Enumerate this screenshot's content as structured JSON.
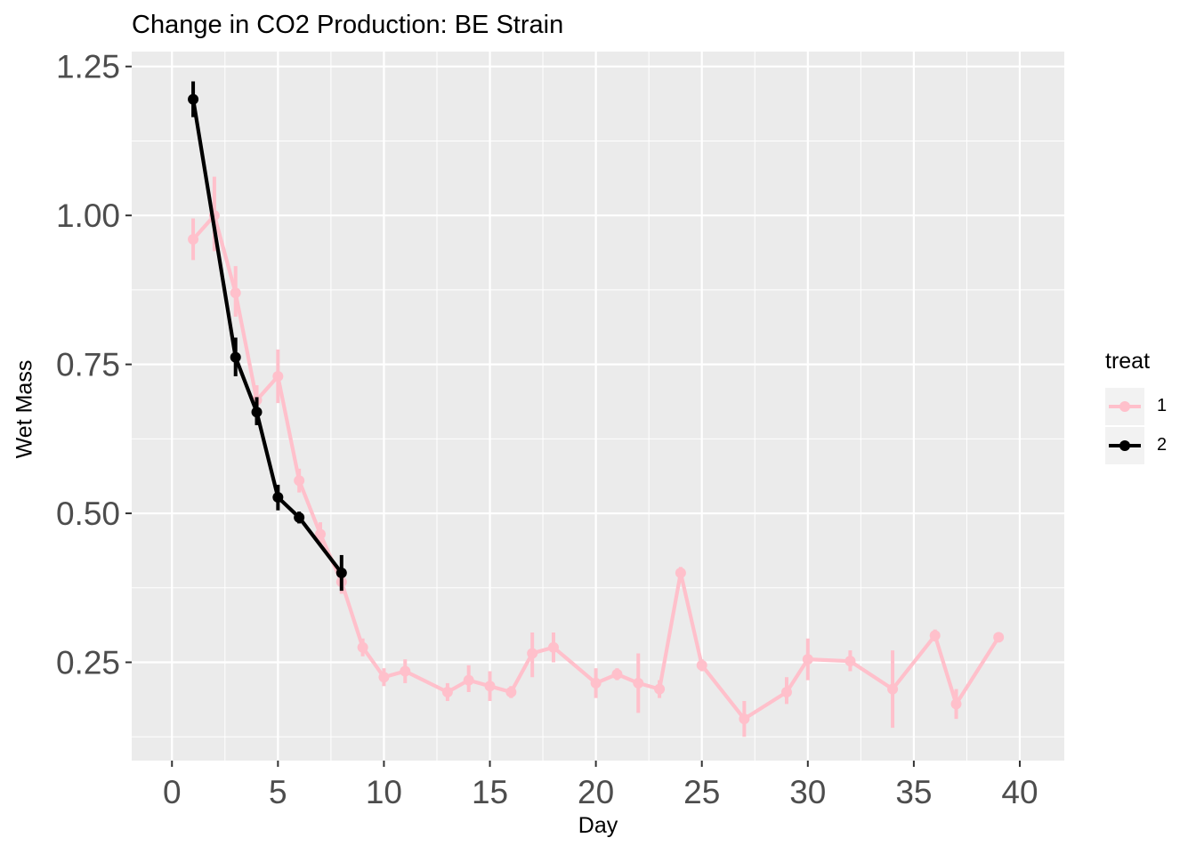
{
  "chart_data": {
    "type": "line",
    "title": "Change in CO2 Production: BE Strain",
    "xlabel": "Day",
    "ylabel": "Wet Mass",
    "xlim": [
      -1.9,
      42.1
    ],
    "ylim": [
      0.085,
      1.275
    ],
    "x_ticks": [
      0,
      5,
      10,
      15,
      20,
      25,
      30,
      35,
      40
    ],
    "x_tick_labels": [
      "0",
      "5",
      "10",
      "15",
      "20",
      "25",
      "30",
      "35",
      "40"
    ],
    "y_ticks": [
      0.25,
      0.5,
      0.75,
      1.0,
      1.25
    ],
    "y_tick_labels": [
      "0.25",
      "0.50",
      "0.75",
      "1.00",
      "1.25"
    ],
    "grid": true,
    "legend": {
      "title": "treat",
      "position": "right"
    },
    "series": [
      {
        "name": "1",
        "color": "#FFC0CB",
        "points": [
          {
            "x": 1,
            "y": 0.96,
            "lo": 0.925,
            "hi": 0.995
          },
          {
            "x": 2,
            "y": 1.0,
            "lo": 0.94,
            "hi": 1.065
          },
          {
            "x": 3,
            "y": 0.87,
            "lo": 0.83,
            "hi": 0.915
          },
          {
            "x": 4,
            "y": 0.69,
            "lo": 0.665,
            "hi": 0.715
          },
          {
            "x": 5,
            "y": 0.73,
            "lo": 0.685,
            "hi": 0.775
          },
          {
            "x": 6,
            "y": 0.555,
            "lo": 0.535,
            "hi": 0.575
          },
          {
            "x": 7,
            "y": 0.465,
            "lo": 0.445,
            "hi": 0.485
          },
          {
            "x": 8,
            "y": 0.385,
            "lo": 0.365,
            "hi": 0.405
          },
          {
            "x": 9,
            "y": 0.275,
            "lo": 0.26,
            "hi": 0.29
          },
          {
            "x": 10,
            "y": 0.225,
            "lo": 0.21,
            "hi": 0.24
          },
          {
            "x": 11,
            "y": 0.235,
            "lo": 0.215,
            "hi": 0.255
          },
          {
            "x": 13,
            "y": 0.2,
            "lo": 0.185,
            "hi": 0.215
          },
          {
            "x": 14,
            "y": 0.22,
            "lo": 0.2,
            "hi": 0.245
          },
          {
            "x": 15,
            "y": 0.21,
            "lo": 0.185,
            "hi": 0.235
          },
          {
            "x": 16,
            "y": 0.2,
            "lo": 0.19,
            "hi": 0.21
          },
          {
            "x": 17,
            "y": 0.265,
            "lo": 0.225,
            "hi": 0.3
          },
          {
            "x": 18,
            "y": 0.275,
            "lo": 0.25,
            "hi": 0.3
          },
          {
            "x": 20,
            "y": 0.215,
            "lo": 0.19,
            "hi": 0.24
          },
          {
            "x": 21,
            "y": 0.23,
            "lo": 0.22,
            "hi": 0.24
          },
          {
            "x": 22,
            "y": 0.215,
            "lo": 0.165,
            "hi": 0.265
          },
          {
            "x": 23,
            "y": 0.205,
            "lo": 0.19,
            "hi": 0.22
          },
          {
            "x": 24,
            "y": 0.4,
            "lo": 0.39,
            "hi": 0.41
          },
          {
            "x": 25,
            "y": 0.245,
            "lo": 0.235,
            "hi": 0.255
          },
          {
            "x": 27,
            "y": 0.155,
            "lo": 0.125,
            "hi": 0.185
          },
          {
            "x": 29,
            "y": 0.2,
            "lo": 0.18,
            "hi": 0.225
          },
          {
            "x": 30,
            "y": 0.255,
            "lo": 0.22,
            "hi": 0.29
          },
          {
            "x": 32,
            "y": 0.252,
            "lo": 0.235,
            "hi": 0.27
          },
          {
            "x": 34,
            "y": 0.205,
            "lo": 0.14,
            "hi": 0.27
          },
          {
            "x": 36,
            "y": 0.295,
            "lo": 0.285,
            "hi": 0.305
          },
          {
            "x": 37,
            "y": 0.18,
            "lo": 0.155,
            "hi": 0.205
          },
          {
            "x": 39,
            "y": 0.292,
            "lo": 0.285,
            "hi": 0.3
          }
        ]
      },
      {
        "name": "2",
        "color": "#000000",
        "points": [
          {
            "x": 1,
            "y": 1.195,
            "lo": 1.165,
            "hi": 1.225
          },
          {
            "x": 3,
            "y": 0.762,
            "lo": 0.73,
            "hi": 0.795
          },
          {
            "x": 4,
            "y": 0.67,
            "lo": 0.648,
            "hi": 0.695
          },
          {
            "x": 5,
            "y": 0.527,
            "lo": 0.505,
            "hi": 0.548
          },
          {
            "x": 6,
            "y": 0.493,
            "lo": 0.483,
            "hi": 0.503
          },
          {
            "x": 8,
            "y": 0.4,
            "lo": 0.37,
            "hi": 0.43
          }
        ]
      }
    ]
  }
}
